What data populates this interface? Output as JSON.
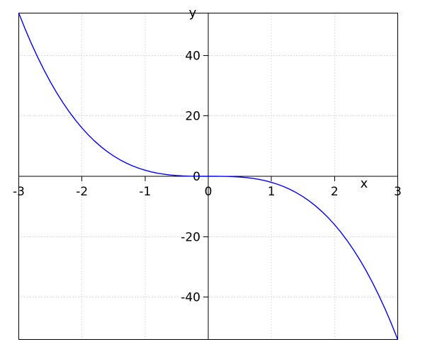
{
  "figure": {
    "background": "#ffffff",
    "border_color": "#000000",
    "axis_color": "#000000",
    "grid_color": "#bdbdbd",
    "text_color": "#000000"
  },
  "chart_data": {
    "type": "line",
    "title": "",
    "xlabel": "x",
    "ylabel": "y",
    "xlim": [
      -3,
      3
    ],
    "ylim": [
      -54,
      54
    ],
    "grid": "dotted",
    "legend": "none",
    "xticks": {
      "values": [
        -3,
        -2,
        -1,
        0,
        1,
        2,
        3
      ],
      "labels": [
        "-3",
        "-2",
        "-1",
        "0",
        "1",
        "2",
        "3"
      ]
    },
    "yticks": {
      "values": [
        -40,
        -20,
        0,
        20,
        40
      ],
      "labels": [
        "-40",
        "-20",
        "0",
        "20",
        "40"
      ]
    },
    "gridlines": {
      "x": [
        -2,
        -1,
        1,
        2
      ],
      "y": [
        -40,
        -20,
        20,
        40
      ]
    },
    "series": [
      {
        "color": "#0000ff",
        "x": [
          -3.0,
          -2.9,
          -2.8,
          -2.7,
          -2.6,
          -2.5,
          -2.4,
          -2.3,
          -2.2,
          -2.1,
          -2.0,
          -1.9,
          -1.8,
          -1.7,
          -1.6,
          -1.5,
          -1.4,
          -1.3,
          -1.2,
          -1.1,
          -1.0,
          -0.9,
          -0.8,
          -0.7,
          -0.6,
          -0.5,
          -0.4,
          -0.3,
          -0.2,
          -0.1,
          0.0,
          0.1,
          0.2,
          0.3,
          0.4,
          0.5,
          0.6,
          0.7,
          0.8,
          0.9,
          1.0,
          1.1,
          1.2,
          1.3,
          1.4,
          1.5,
          1.6,
          1.7,
          1.8,
          1.9,
          2.0,
          2.1,
          2.2,
          2.3,
          2.4,
          2.5,
          2.6,
          2.7,
          2.8,
          2.9,
          3.0
        ],
        "y": [
          54.0,
          48.778,
          43.904,
          39.366,
          35.152,
          31.25,
          27.648,
          24.334,
          21.296,
          18.522,
          16.0,
          13.718,
          11.664,
          9.826,
          8.192,
          6.75,
          5.488,
          4.394,
          3.456,
          2.662,
          2.0,
          1.458,
          1.024,
          0.686,
          0.432,
          0.25,
          0.128,
          0.054,
          0.016,
          0.002,
          0.0,
          -0.002,
          -0.016,
          -0.054,
          -0.128,
          -0.25,
          -0.432,
          -0.686,
          -1.024,
          -1.458,
          -2.0,
          -2.662,
          -3.456,
          -4.394,
          -5.488,
          -6.75,
          -8.192,
          -9.826,
          -11.664,
          -13.718,
          -16.0,
          -18.522,
          -21.296,
          -24.334,
          -27.648,
          -31.25,
          -35.152,
          -39.366,
          -43.904,
          -48.778,
          -54.0
        ]
      }
    ]
  }
}
